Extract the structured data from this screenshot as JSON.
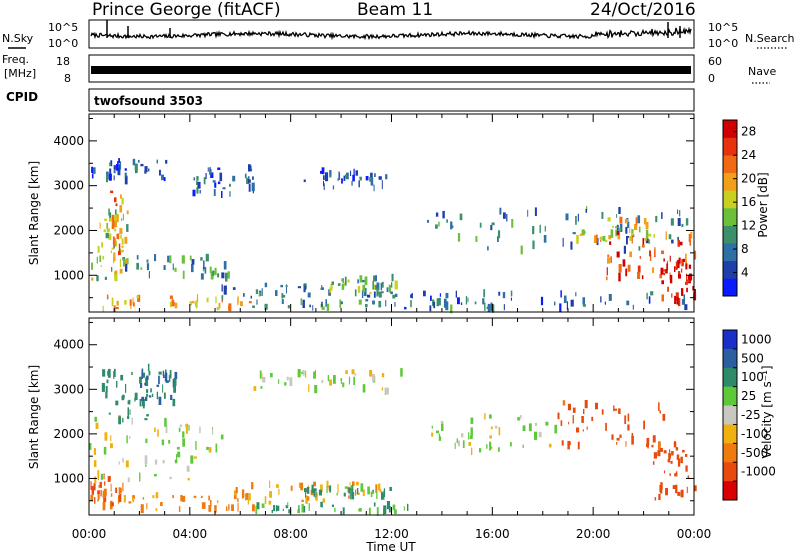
{
  "header": {
    "station": "Prince George (fitACF)",
    "beam": "Beam 11",
    "date": "24/Oct/2016"
  },
  "noise_strip": {
    "left_label": "N.Sky",
    "right_label": "N.Search",
    "ticks_left": [
      "10^5",
      "10^0"
    ],
    "ticks_right": [
      "10^5",
      "10^0"
    ]
  },
  "freq_strip": {
    "left_label_1": "Freq.",
    "left_label_2": "[MHz]",
    "ticks_left": [
      "18",
      "8"
    ],
    "right_label": "Nave",
    "ticks_right": [
      "60",
      "0"
    ]
  },
  "cpid": {
    "label": "CPID",
    "value": "twofsound 3503"
  },
  "colors": {
    "power_scale": [
      "#0a1cff",
      "#1e3ea8",
      "#2e6fa6",
      "#3b8f6a",
      "#6bbf3a",
      "#c8d020",
      "#f2a01a",
      "#ef6a12",
      "#e8320e",
      "#d00000"
    ],
    "velocity_scale": [
      "#1a2fc8",
      "#2a5fa0",
      "#2f8a6a",
      "#5cc83a",
      "#c8c8c0",
      "#f0b010",
      "#ef7a10",
      "#e84a0e",
      "#d80000"
    ]
  },
  "chart_data": [
    {
      "type": "heatmap",
      "panel": "power",
      "ylabel": "Slant Range [km]",
      "ylim": [
        180,
        4600
      ],
      "yticks": [
        "1000",
        "2000",
        "3000",
        "4000"
      ],
      "colorbar_label": "Power [dB]",
      "colorbar_ticks": [
        "4",
        "8",
        "12",
        "16",
        "20",
        "24",
        "28"
      ],
      "colorbar_range": [
        0,
        30
      ],
      "xlim": [
        0,
        24
      ],
      "bands": [
        {
          "t0": 0.1,
          "t1": 6.5,
          "r0": 250,
          "r1": 520,
          "v": 20
        },
        {
          "t0": 0.0,
          "t1": 1.5,
          "r0": 900,
          "r1": 2500,
          "v": 14
        },
        {
          "t0": 0.8,
          "t1": 1.3,
          "r0": 1000,
          "r1": 2900,
          "v": 20
        },
        {
          "t0": 1.0,
          "t1": 5.5,
          "r0": 950,
          "r1": 1400,
          "v": 10
        },
        {
          "t0": 0.0,
          "t1": 3.2,
          "r0": 3100,
          "r1": 3600,
          "v": 6
        },
        {
          "t0": 4.0,
          "t1": 6.5,
          "r0": 2800,
          "r1": 3400,
          "v": 6
        },
        {
          "t0": 5.0,
          "t1": 12.2,
          "r0": 500,
          "r1": 800,
          "v": 8
        },
        {
          "t0": 8.5,
          "t1": 11.8,
          "r0": 2950,
          "r1": 3350,
          "v": 5
        },
        {
          "t0": 9.5,
          "t1": 12.2,
          "r0": 600,
          "r1": 950,
          "v": 12
        },
        {
          "t0": 6.0,
          "t1": 16.0,
          "r0": 250,
          "r1": 450,
          "v": 10
        },
        {
          "t0": 13.3,
          "t1": 24.0,
          "r0": 1550,
          "r1": 2500,
          "v": 8
        },
        {
          "t0": 18.8,
          "t1": 22.5,
          "r0": 1750,
          "r1": 2250,
          "v": 18
        },
        {
          "t0": 20.5,
          "t1": 24.0,
          "r0": 900,
          "r1": 2000,
          "v": 24
        },
        {
          "t0": 22.5,
          "t1": 24.0,
          "r0": 400,
          "r1": 1400,
          "v": 28
        },
        {
          "t0": 12.5,
          "t1": 24.0,
          "r0": 250,
          "r1": 600,
          "v": 6
        }
      ]
    },
    {
      "type": "heatmap",
      "panel": "velocity",
      "xlabel": "Time UT",
      "ylabel": "Slant Range [km]",
      "ylim": [
        180,
        4600
      ],
      "yticks": [
        "1000",
        "2000",
        "3000",
        "4000"
      ],
      "colorbar_label": "Velocity [m s⁻¹]",
      "colorbar_ticks": [
        "1000",
        "500",
        "100",
        "25",
        "-25",
        "-100",
        "-500",
        "-1000"
      ],
      "xlim": [
        0,
        24
      ],
      "xticks": [
        "00:00",
        "04:00",
        "08:00",
        "12:00",
        "16:00",
        "20:00",
        "00:00"
      ],
      "bands": [
        {
          "t0": 0.0,
          "t1": 1.4,
          "r0": 350,
          "r1": 1050,
          "v": -300
        },
        {
          "t0": 1.3,
          "t1": 6.5,
          "r0": 300,
          "r1": 650,
          "v": -120
        },
        {
          "t0": 0.0,
          "t1": 5.5,
          "r0": 950,
          "r1": 2400,
          "v": 0
        },
        {
          "t0": 0.5,
          "t1": 2.5,
          "r0": 2300,
          "r1": 3500,
          "v": 200
        },
        {
          "t0": 2.0,
          "t1": 3.5,
          "r0": 2700,
          "r1": 3400,
          "v": 300
        },
        {
          "t0": 5.5,
          "t1": 12.0,
          "r0": 450,
          "r1": 900,
          "v": -80
        },
        {
          "t0": 8.5,
          "t1": 12.0,
          "r0": 600,
          "r1": 800,
          "v": 80
        },
        {
          "t0": 6.5,
          "t1": 13.0,
          "r0": 250,
          "r1": 420,
          "v": 60
        },
        {
          "t0": 6.5,
          "t1": 12.5,
          "r0": 2950,
          "r1": 3400,
          "v": 0
        },
        {
          "t0": 13.5,
          "t1": 18.7,
          "r0": 1600,
          "r1": 2400,
          "v": 0
        },
        {
          "t0": 18.5,
          "t1": 22.8,
          "r0": 1700,
          "r1": 2700,
          "v": -350
        },
        {
          "t0": 22.3,
          "t1": 24.0,
          "r0": 500,
          "r1": 1800,
          "v": -600
        }
      ]
    }
  ]
}
